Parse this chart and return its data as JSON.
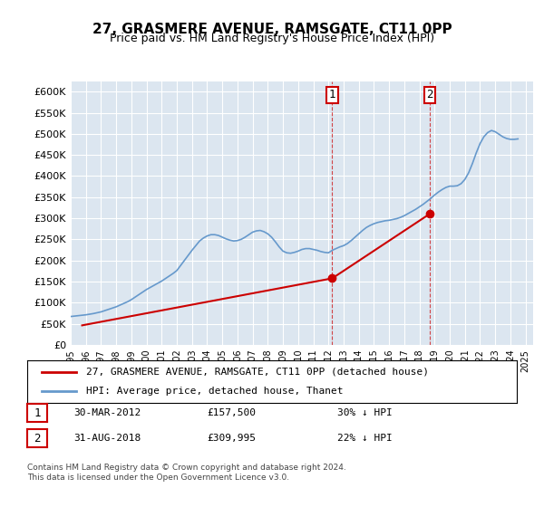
{
  "title": "27, GRASMERE AVENUE, RAMSGATE, CT11 0PP",
  "subtitle": "Price paid vs. HM Land Registry's House Price Index (HPI)",
  "background_color": "#dce6f0",
  "plot_bg_color": "#dce6f0",
  "ylabel_ticks": [
    "£0",
    "£50K",
    "£100K",
    "£150K",
    "£200K",
    "£250K",
    "£300K",
    "£350K",
    "£400K",
    "£450K",
    "£500K",
    "£550K",
    "£600K"
  ],
  "ytick_values": [
    0,
    50000,
    100000,
    150000,
    200000,
    250000,
    300000,
    350000,
    400000,
    450000,
    500000,
    550000,
    600000
  ],
  "ylim": [
    0,
    625000
  ],
  "xlim_start": 1995.0,
  "xlim_end": 2025.5,
  "hpi_color": "#6699cc",
  "price_color": "#cc0000",
  "legend_label_price": "27, GRASMERE AVENUE, RAMSGATE, CT11 0PP (detached house)",
  "legend_label_hpi": "HPI: Average price, detached house, Thanet",
  "purchase1_date": "30-MAR-2012",
  "purchase1_price": 157500,
  "purchase1_label": "1",
  "purchase1_x": 2012.25,
  "purchase2_date": "31-AUG-2018",
  "purchase2_price": 309995,
  "purchase2_label": "2",
  "purchase2_x": 2018.67,
  "annotation1": "1    30-MAR-2012        £157,500        30% ↓ HPI",
  "annotation2": "2    31-AUG-2018        £309,995        22% ↓ HPI",
  "footer": "Contains HM Land Registry data © Crown copyright and database right 2024.\nThis data is licensed under the Open Government Licence v3.0.",
  "hpi_data_x": [
    1995.0,
    1995.25,
    1995.5,
    1995.75,
    1996.0,
    1996.25,
    1996.5,
    1996.75,
    1997.0,
    1997.25,
    1997.5,
    1997.75,
    1998.0,
    1998.25,
    1998.5,
    1998.75,
    1999.0,
    1999.25,
    1999.5,
    1999.75,
    2000.0,
    2000.25,
    2000.5,
    2000.75,
    2001.0,
    2001.25,
    2001.5,
    2001.75,
    2002.0,
    2002.25,
    2002.5,
    2002.75,
    2003.0,
    2003.25,
    2003.5,
    2003.75,
    2004.0,
    2004.25,
    2004.5,
    2004.75,
    2005.0,
    2005.25,
    2005.5,
    2005.75,
    2006.0,
    2006.25,
    2006.5,
    2006.75,
    2007.0,
    2007.25,
    2007.5,
    2007.75,
    2008.0,
    2008.25,
    2008.5,
    2008.75,
    2009.0,
    2009.25,
    2009.5,
    2009.75,
    2010.0,
    2010.25,
    2010.5,
    2010.75,
    2011.0,
    2011.25,
    2011.5,
    2011.75,
    2012.0,
    2012.25,
    2012.5,
    2012.75,
    2013.0,
    2013.25,
    2013.5,
    2013.75,
    2014.0,
    2014.25,
    2014.5,
    2014.75,
    2015.0,
    2015.25,
    2015.5,
    2015.75,
    2016.0,
    2016.25,
    2016.5,
    2016.75,
    2017.0,
    2017.25,
    2017.5,
    2017.75,
    2018.0,
    2018.25,
    2018.5,
    2018.75,
    2019.0,
    2019.25,
    2019.5,
    2019.75,
    2020.0,
    2020.25,
    2020.5,
    2020.75,
    2021.0,
    2021.25,
    2021.5,
    2021.75,
    2022.0,
    2022.25,
    2022.5,
    2022.75,
    2023.0,
    2023.25,
    2023.5,
    2023.75,
    2024.0,
    2024.25,
    2024.5
  ],
  "hpi_data_y": [
    67000,
    68000,
    69000,
    70000,
    71000,
    72500,
    74000,
    76000,
    78000,
    81000,
    84000,
    87000,
    90000,
    94000,
    98000,
    102000,
    107000,
    113000,
    119000,
    125000,
    131000,
    136000,
    141000,
    146000,
    151000,
    157000,
    163000,
    169000,
    176000,
    188000,
    200000,
    212000,
    224000,
    235000,
    246000,
    253000,
    258000,
    261000,
    261000,
    259000,
    255000,
    251000,
    248000,
    246000,
    247000,
    250000,
    255000,
    261000,
    267000,
    270000,
    271000,
    268000,
    263000,
    255000,
    244000,
    232000,
    222000,
    218000,
    217000,
    219000,
    222000,
    226000,
    228000,
    228000,
    226000,
    224000,
    221000,
    219000,
    218000,
    224000,
    228000,
    232000,
    235000,
    240000,
    247000,
    255000,
    263000,
    271000,
    278000,
    283000,
    287000,
    290000,
    292000,
    294000,
    295000,
    297000,
    299000,
    302000,
    306000,
    311000,
    316000,
    321000,
    327000,
    333000,
    340000,
    347000,
    355000,
    362000,
    368000,
    373000,
    376000,
    376000,
    377000,
    382000,
    392000,
    408000,
    430000,
    455000,
    477000,
    493000,
    503000,
    508000,
    505000,
    499000,
    493000,
    489000,
    487000,
    487000,
    488000
  ],
  "price_data_x": [
    1995.75,
    2012.25,
    2018.67
  ],
  "price_data_y": [
    46000,
    157500,
    309995
  ],
  "xtick_years": [
    1995,
    1996,
    1997,
    1998,
    1999,
    2000,
    2001,
    2002,
    2003,
    2004,
    2005,
    2006,
    2007,
    2008,
    2009,
    2010,
    2011,
    2012,
    2013,
    2014,
    2015,
    2016,
    2017,
    2018,
    2019,
    2020,
    2021,
    2022,
    2023,
    2024,
    2025
  ]
}
